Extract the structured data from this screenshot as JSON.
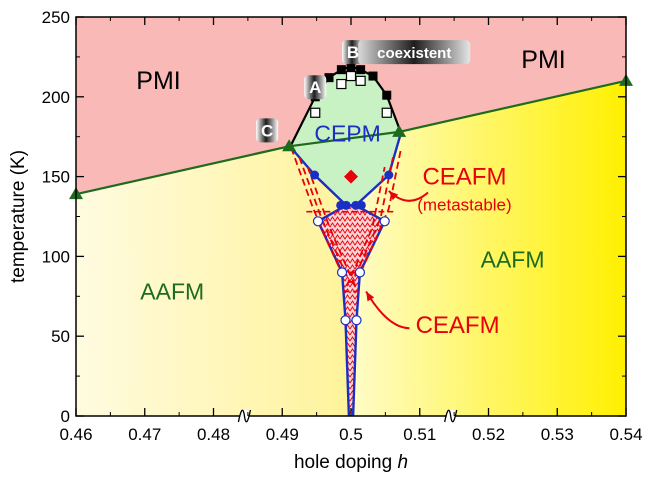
{
  "chart_data": {
    "type": "phase-diagram",
    "xlabel": "hole doping",
    "xlabel_symbol": "h",
    "ylabel": "temperature (K)",
    "xlim": [
      0.46,
      0.54
    ],
    "ylim": [
      0,
      250
    ],
    "x_ticks": [
      "0.46",
      "0.47",
      "0.48",
      "0.49",
      "0.5",
      "0.51",
      "0.52",
      "0.53",
      "0.54"
    ],
    "y_ticks": [
      "0",
      "50",
      "100",
      "150",
      "200",
      "250"
    ],
    "x_axis_breaks": [
      0.4845,
      0.5145
    ],
    "regions": [
      {
        "label": "PMI",
        "color": "#f9b9b7",
        "label_at": [
          0.472,
          205
        ]
      },
      {
        "label": "PMI",
        "color": "#f9b9b7",
        "label_at": [
          0.528,
          218
        ]
      },
      {
        "label": "CEPM",
        "color": "#c9f2c4",
        "label_at": [
          0.4995,
          172
        ]
      },
      {
        "label": "AAFM",
        "color": "#fffa90",
        "label_at": [
          0.474,
          73
        ]
      },
      {
        "label": "AAFM",
        "color": "#fffa90",
        "label_at": [
          0.5235,
          93
        ]
      },
      {
        "label": "CEAFM",
        "sublabel": "(metastable)",
        "color": "#e8000b",
        "label_at": [
          0.5165,
          145
        ]
      },
      {
        "label": "CEAFM",
        "color": "#e8000b",
        "label_at": [
          0.5155,
          52
        ]
      }
    ],
    "markers": [
      {
        "label": "A",
        "at": [
          0.4948,
          206
        ]
      },
      {
        "label": "B",
        "at": [
          0.5003,
          228
        ]
      },
      {
        "label": "C",
        "at": [
          0.4878,
          179
        ]
      },
      {
        "label": "coexistent",
        "at": [
          0.5092,
          228
        ]
      }
    ],
    "series": [
      {
        "role": "boundary-PMI-green",
        "color": "#1e6b1e",
        "marker": "triangle",
        "x": [
          0.46,
          0.491,
          0.507,
          0.54
        ],
        "y": [
          139,
          169,
          178,
          210
        ]
      },
      {
        "role": "boundary-PMI-black",
        "color": "#000000",
        "marker": "square",
        "x": [
          0.4913,
          0.4948,
          0.4968,
          0.4986,
          0.5,
          0.5014,
          0.5032,
          0.5052,
          0.5073
        ],
        "y": [
          170,
          200,
          212,
          217,
          219,
          217,
          213,
          201,
          177
        ]
      },
      {
        "role": "transition-open-squares",
        "color": "#000000",
        "marker": "open-square",
        "x": [
          0.4948,
          0.4986,
          0.5,
          0.5014,
          0.5052
        ],
        "y": [
          190,
          208,
          213,
          210,
          190
        ]
      },
      {
        "role": "boundary-CEPM-blue",
        "color": "#1a2fc4",
        "marker": "filled-circle",
        "x": [
          0.4913,
          0.4947,
          0.4993,
          0.5007,
          0.5055,
          0.5073
        ],
        "y": [
          168,
          151,
          132,
          132,
          151,
          178
        ]
      },
      {
        "role": "boundary-CEAFM-blue",
        "color": "#1a2fc4",
        "marker": "open-circle",
        "x": [
          0.4952,
          0.4987,
          0.4992,
          0.4997,
          0.5003,
          0.5008,
          0.5013,
          0.5049
        ],
        "y": [
          122,
          90,
          60,
          0,
          0,
          60,
          90,
          122
        ]
      },
      {
        "role": "metastable-dashed",
        "color": "#e8000b",
        "marker": "none",
        "x": [
          0.4913,
          0.4945,
          0.4968,
          0.4986,
          0.5014,
          0.5032,
          0.5055,
          0.5073
        ],
        "y": [
          168,
          130,
          107,
          90,
          90,
          107,
          130,
          168
        ]
      }
    ],
    "red_diamond": {
      "at": [
        0.5,
        150
      ]
    }
  }
}
